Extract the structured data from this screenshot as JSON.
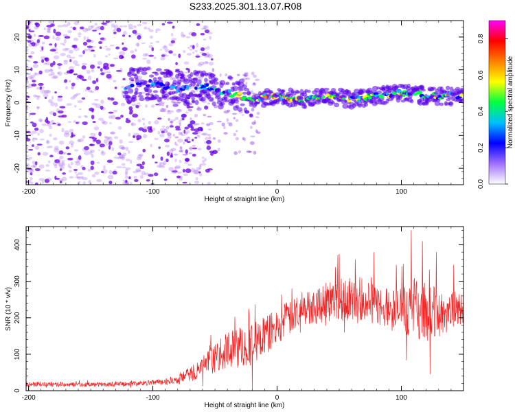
{
  "title": "S233.2025.301.13.07.R08",
  "chart_data": [
    {
      "type": "heatmap",
      "title": "S233.2025.301.13.07.R08",
      "xlabel": "Height of straight line (km)",
      "ylabel": "Frequency (Hz)",
      "xlim": [
        -202,
        150
      ],
      "ylim": [
        -25,
        25
      ],
      "x_ticks": [
        -200,
        -100,
        0,
        100
      ],
      "y_ticks": [
        -20,
        -10,
        0,
        10,
        20
      ],
      "colorbar": {
        "label": "Normalized spectral amplitude",
        "range": [
          0.0,
          0.9
        ],
        "ticks": [
          0.0,
          0.2,
          0.4,
          0.6,
          0.8
        ],
        "colors": [
          "#ffffff",
          "#a070ff",
          "#0000ff",
          "#00c0ff",
          "#00ff40",
          "#ffff00",
          "#ff8000",
          "#ff0000",
          "#ff00ff"
        ]
      },
      "ridge": {
        "x": [
          -120,
          -100,
          -80,
          -60,
          -40,
          -20,
          0,
          20,
          40,
          60,
          80,
          100,
          120,
          150
        ],
        "freq": [
          5,
          6,
          4,
          5,
          3,
          1,
          2,
          1,
          2,
          1,
          2,
          3,
          2,
          2
        ],
        "amplitude": [
          0.25,
          0.3,
          0.3,
          0.3,
          0.4,
          0.75,
          0.65,
          0.7,
          0.6,
          0.55,
          0.5,
          0.45,
          0.45,
          0.5
        ]
      },
      "colors": {
        "noise": "#9a55f0",
        "strong": "#6a00e0"
      }
    },
    {
      "type": "line",
      "xlabel": "Height of straight line (km)",
      "ylabel": "SNR (10 * v/v)",
      "xlim": [
        -202,
        150
      ],
      "ylim": [
        0,
        450
      ],
      "x_ticks": [
        -200,
        -100,
        0,
        100
      ],
      "y_ticks": [
        0,
        100,
        200,
        300,
        400
      ],
      "series": [
        {
          "name": "SNR",
          "color": "#ee2222",
          "x": [
            -202,
            -180,
            -160,
            -140,
            -120,
            -100,
            -90,
            -80,
            -70,
            -60,
            -50,
            -40,
            -30,
            -20,
            -10,
            0,
            10,
            20,
            30,
            40,
            50,
            60,
            70,
            80,
            90,
            100,
            110,
            120,
            130,
            140,
            150
          ],
          "baseline": [
            18,
            17,
            17,
            17,
            19,
            22,
            25,
            30,
            45,
            65,
            90,
            110,
            120,
            130,
            150,
            175,
            200,
            220,
            235,
            245,
            255,
            250,
            245,
            235,
            225,
            220,
            225,
            215,
            210,
            220,
            225
          ],
          "spread": [
            6,
            6,
            6,
            6,
            7,
            8,
            10,
            12,
            20,
            30,
            40,
            50,
            60,
            60,
            55,
            50,
            50,
            45,
            50,
            60,
            65,
            60,
            55,
            55,
            60,
            70,
            80,
            80,
            70,
            55,
            45
          ],
          "peaks": [
            {
              "x": 108,
              "y": 440
            },
            {
              "x": 117,
              "y": 410
            },
            {
              "x": 78,
              "y": 380
            },
            {
              "x": 50,
              "y": 375
            },
            {
              "x": 63,
              "y": 360
            },
            {
              "x": 96,
              "y": 345
            },
            {
              "x": 142,
              "y": 345
            },
            {
              "x": 128,
              "y": 380
            },
            {
              "x": 12,
              "y": 280
            },
            {
              "x": -36,
              "y": 160
            },
            {
              "x": -15,
              "y": 150
            },
            {
              "x": -20,
              "y": 5
            },
            {
              "x": 123,
              "y": 45
            }
          ]
        }
      ]
    }
  ]
}
